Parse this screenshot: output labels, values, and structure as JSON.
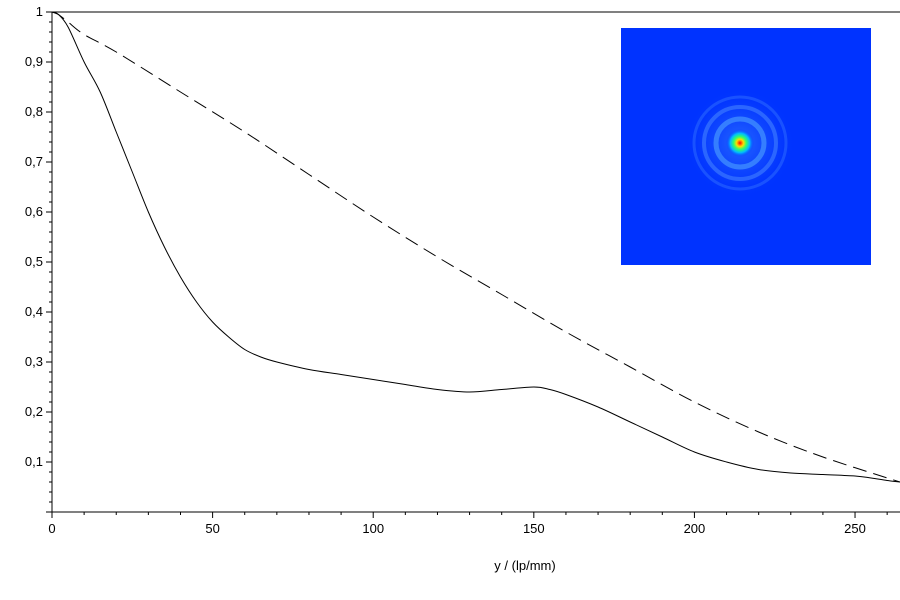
{
  "chart_data": {
    "type": "line",
    "xlabel": "y / (lp/mm)",
    "ylabel": "",
    "xlim": [
      0,
      264
    ],
    "ylim": [
      0,
      1
    ],
    "x_ticks": [
      0,
      50,
      100,
      150,
      200,
      250
    ],
    "x_tick_labels": [
      "0",
      "50",
      "100",
      "150",
      "200",
      "250"
    ],
    "y_ticks": [
      0.1,
      0.2,
      0.3,
      0.4,
      0.5,
      0.6,
      0.7,
      0.8,
      0.9,
      1
    ],
    "y_tick_labels": [
      "0,1",
      "0,2",
      "0,3",
      "0,4",
      "0,5",
      "0,6",
      "0,7",
      "0,8",
      "0,9",
      "1"
    ],
    "grid": false,
    "series": [
      {
        "style": "solid",
        "color": "#000000",
        "x": [
          0,
          2,
          5,
          10,
          15,
          20,
          25,
          30,
          35,
          40,
          45,
          50,
          55,
          60,
          65,
          70,
          80,
          90,
          100,
          110,
          120,
          130,
          140,
          150,
          155,
          160,
          170,
          180,
          190,
          200,
          210,
          220,
          230,
          240,
          250,
          255,
          260,
          264
        ],
        "y": [
          1.0,
          0.995,
          0.97,
          0.9,
          0.84,
          0.76,
          0.68,
          0.6,
          0.53,
          0.47,
          0.42,
          0.38,
          0.35,
          0.325,
          0.31,
          0.3,
          0.285,
          0.275,
          0.265,
          0.255,
          0.245,
          0.24,
          0.245,
          0.25,
          0.245,
          0.235,
          0.21,
          0.18,
          0.15,
          0.12,
          0.1,
          0.085,
          0.078,
          0.075,
          0.072,
          0.068,
          0.063,
          0.06
        ]
      },
      {
        "style": "dashed",
        "color": "#000000",
        "x": [
          0,
          2,
          5,
          10,
          20,
          40,
          60,
          80,
          100,
          120,
          140,
          160,
          180,
          200,
          220,
          240,
          264
        ],
        "y": [
          1.0,
          0.995,
          0.98,
          0.955,
          0.92,
          0.84,
          0.76,
          0.675,
          0.59,
          0.51,
          0.435,
          0.36,
          0.29,
          0.22,
          0.16,
          0.11,
          0.06
        ]
      }
    ],
    "inset": {
      "type": "heatmap",
      "background_color": "#0033ff",
      "description": "psf-spot"
    }
  }
}
